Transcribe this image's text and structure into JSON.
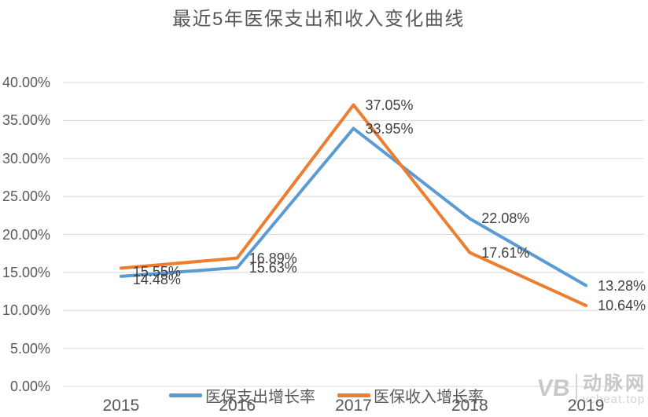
{
  "title": "最近5年医保支出和收入变化曲线",
  "chart_data": {
    "type": "line",
    "title": "最近5年医保支出和收入变化曲线",
    "categories": [
      "2015",
      "2016",
      "2017",
      "2018",
      "2019"
    ],
    "series": [
      {
        "name": "医保支出增长率",
        "color": "#5B9BD5",
        "values": [
          14.48,
          15.63,
          33.95,
          22.08,
          13.28
        ],
        "point_labels": [
          "14.48%",
          "15.63%",
          "33.95%",
          "22.08%",
          "13.28%"
        ]
      },
      {
        "name": "医保收入增长率",
        "color": "#ED7D31",
        "values": [
          15.55,
          16.89,
          37.05,
          17.61,
          10.64
        ],
        "point_labels": [
          "15.55%",
          "16.89%",
          "37.05%",
          "17.61%",
          "10.64%"
        ]
      }
    ],
    "y_axis": {
      "ticks": [
        "40.00%",
        "35.00%",
        "30.00%",
        "25.00%",
        "20.00%",
        "15.00%",
        "10.00%",
        "5.00%",
        "0.00%"
      ],
      "min": 0,
      "max": 40
    },
    "grid": "horizontal",
    "gridline_color": "#d9d9d9",
    "legend_position": "bottom",
    "axis_text_color": "#595959",
    "data_label_color": "#404040"
  },
  "watermark": {
    "logo_text": "VB",
    "brand": "动脉网",
    "site": "vcbeat.top"
  }
}
